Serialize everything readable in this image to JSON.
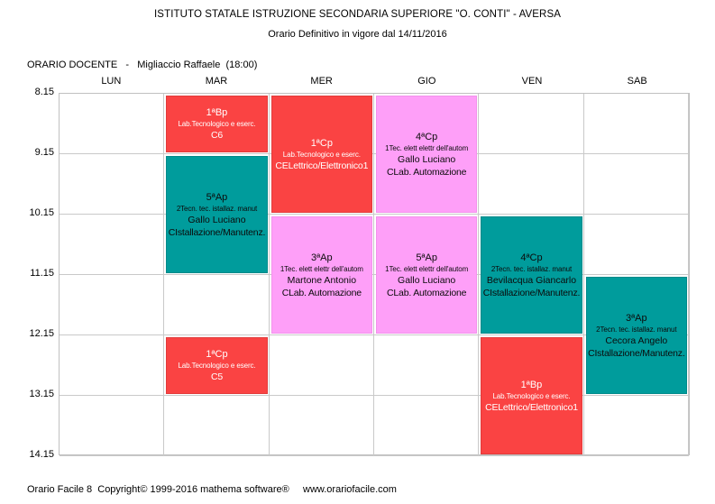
{
  "header": {
    "title": "ISTITUTO STATALE ISTRUZIONE SECONDARIA SUPERIORE \"O. CONTI\" - AVERSA",
    "subtitle": "Orario Definitivo in vigore dal 14/11/2016"
  },
  "schedule_header": {
    "label": "ORARIO DOCENTE",
    "separator": "-",
    "teacher": "Migliaccio Raffaele",
    "hours": "(18:00)"
  },
  "grid": {
    "days": [
      "LUN",
      "MAR",
      "MER",
      "GIO",
      "VEN",
      "SAB"
    ],
    "times": [
      "8.15",
      "9.15",
      "10.15",
      "11.15",
      "12.15",
      "13.15",
      "14.15"
    ],
    "rows": 6,
    "cols": 6
  },
  "colors": {
    "red": {
      "bg": "#fa4343",
      "border": "#e23b3b",
      "text": "#ffffff"
    },
    "teal": {
      "bg": "#009c9c",
      "border": "#008a8a",
      "text": "#0b0b0b"
    },
    "pink": {
      "bg": "#fe9ff8",
      "border": "#f391ec",
      "text": "#0b0b0b"
    },
    "grid_line": "#c9c9c9"
  },
  "events": [
    {
      "day": "MAR",
      "col": 1,
      "row": 0,
      "span": 1,
      "color": "red",
      "class_name": "1ªBp",
      "subject": "Lab.Tecnologico e eserc.",
      "teacher": null,
      "room": "C6"
    },
    {
      "day": "MER",
      "col": 2,
      "row": 0,
      "span": 2,
      "color": "red",
      "class_name": "1ªCp",
      "subject": "Lab.Tecnologico e eserc.",
      "teacher": null,
      "room": "CELettrico/Elettronico1"
    },
    {
      "day": "GIO",
      "col": 3,
      "row": 0,
      "span": 2,
      "color": "pink",
      "class_name": "4ªCp",
      "subject": "1Tec. elett elettr dell'autom",
      "teacher": "Gallo Luciano",
      "room": "CLab. Automazione"
    },
    {
      "day": "MAR",
      "col": 1,
      "row": 1,
      "span": 2,
      "color": "teal",
      "class_name": "5ªAp",
      "subject": "2Tecn. tec. istallaz. manut",
      "teacher": "Gallo Luciano",
      "room": "CIstallazione/Manutenz."
    },
    {
      "day": "MER",
      "col": 2,
      "row": 2,
      "span": 2,
      "color": "pink",
      "class_name": "3ªAp",
      "subject": "1Tec. elett elettr dell'autom",
      "teacher": "Martone Antonio",
      "room": "CLab. Automazione"
    },
    {
      "day": "GIO",
      "col": 3,
      "row": 2,
      "span": 2,
      "color": "pink",
      "class_name": "5ªAp",
      "subject": "1Tec. elett elettr dell'autom",
      "teacher": "Gallo Luciano",
      "room": "CLab. Automazione"
    },
    {
      "day": "VEN",
      "col": 4,
      "row": 2,
      "span": 2,
      "color": "teal",
      "class_name": "4ªCp",
      "subject": "2Tecn. tec. istallaz. manut",
      "teacher": "Bevilacqua Giancarlo",
      "room": "CIstallazione/Manutenz."
    },
    {
      "day": "SAB",
      "col": 5,
      "row": 3,
      "span": 2,
      "color": "teal",
      "class_name": "3ªAp",
      "subject": "2Tecn. tec. istallaz. manut",
      "teacher": "Cecora Angelo",
      "room": "CIstallazione/Manutenz."
    },
    {
      "day": "MAR",
      "col": 1,
      "row": 4,
      "span": 1,
      "color": "red",
      "class_name": "1ªCp",
      "subject": "Lab.Tecnologico e eserc.",
      "teacher": null,
      "room": "C5"
    },
    {
      "day": "VEN",
      "col": 4,
      "row": 4,
      "span": 2,
      "color": "red",
      "class_name": "1ªBp",
      "subject": "Lab.Tecnologico e eserc.",
      "teacher": null,
      "room": "CELettrico/Elettronico1"
    }
  ],
  "footer": {
    "text": "Orario Facile 8  Copyright© 1999-2016 mathema software®     www.orariofacile.com"
  }
}
